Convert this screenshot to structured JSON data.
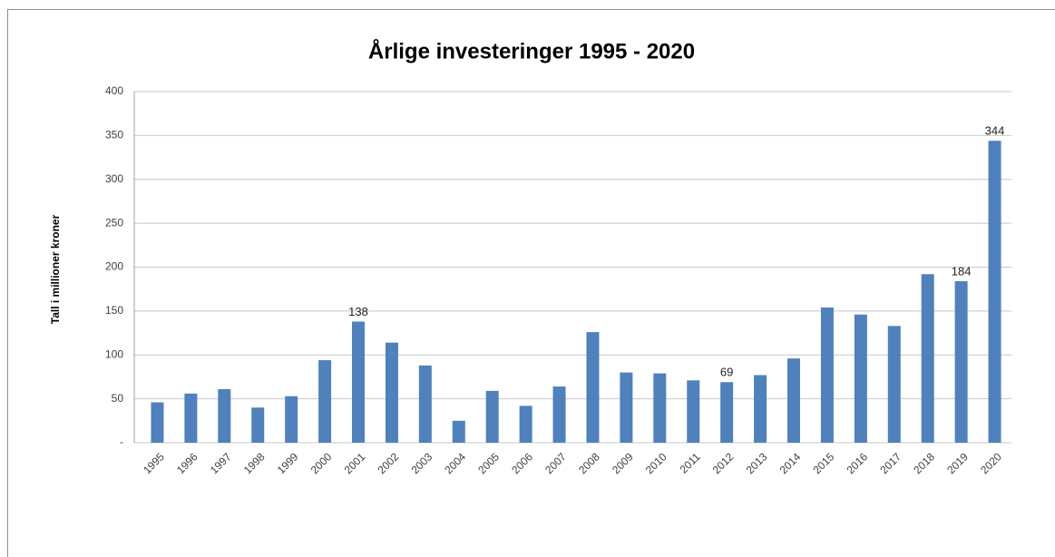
{
  "chart_data": {
    "type": "bar",
    "title": "Årlige investeringer 1995 - 2020",
    "y_label": "Tall i millioner kroner",
    "categories": [
      "1995",
      "1996",
      "1997",
      "1998",
      "1999",
      "2000",
      "2001",
      "2002",
      "2003",
      "2004",
      "2005",
      "2006",
      "2007",
      "2008",
      "2009",
      "2010",
      "2011",
      "2012",
      "2013",
      "2014",
      "2015",
      "2016",
      "2017",
      "2018",
      "2019",
      "2020"
    ],
    "values": [
      46,
      56,
      61,
      40,
      53,
      94,
      138,
      114,
      88,
      25,
      59,
      42,
      64,
      126,
      80,
      79,
      71,
      69,
      77,
      96,
      154,
      146,
      133,
      192,
      184,
      344
    ],
    "value_labels": [
      null,
      null,
      null,
      null,
      null,
      null,
      "138",
      null,
      null,
      null,
      null,
      null,
      null,
      null,
      null,
      null,
      null,
      "69",
      null,
      null,
      null,
      null,
      null,
      null,
      "184",
      "344"
    ],
    "color": "#4f81bd",
    "ylim": [
      0,
      400
    ],
    "yticks": [
      {
        "value": 0,
        "label": "-"
      },
      50,
      100,
      150,
      200,
      250,
      300,
      350,
      400
    ],
    "grid": true
  }
}
